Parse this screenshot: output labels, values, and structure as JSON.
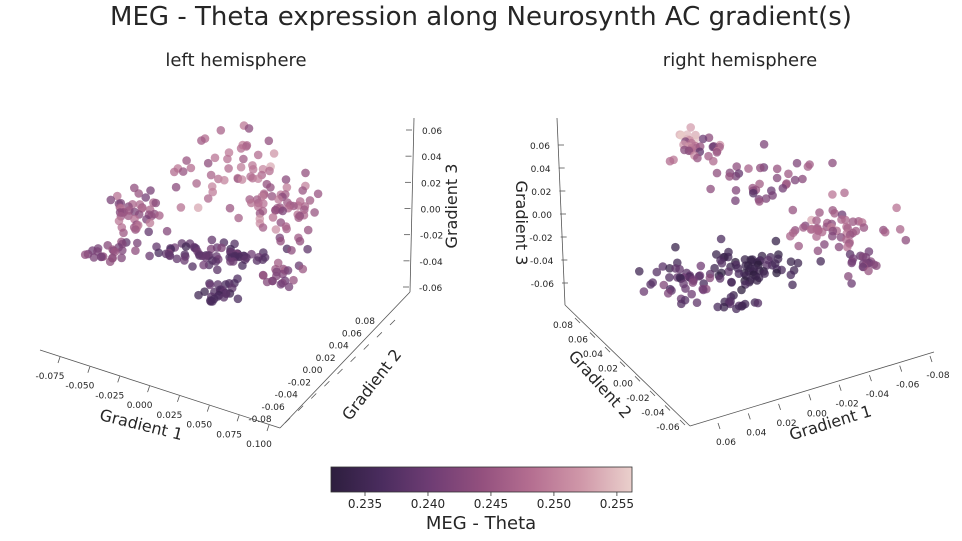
{
  "title": "MEG - Theta expression along Neurosynth AC gradient(s)",
  "colormap": {
    "stops": [
      "#2d1e3e",
      "#4a2c5e",
      "#6f3d74",
      "#93507e",
      "#b56f91",
      "#d098a9",
      "#ead0cc"
    ],
    "label": "MEG - Theta",
    "range": [
      0.2323,
      0.2562
    ],
    "ticks": [
      "0.235",
      "0.240",
      "0.245",
      "0.250",
      "0.255"
    ]
  },
  "chart_data": [
    {
      "type": "scatter",
      "subtitle": "left hemisphere",
      "xlabel": "Gradient 1",
      "ylabel": "Gradient 2",
      "zlabel": "Gradient 3",
      "x_ticks": [
        "-0.075",
        "-0.050",
        "-0.025",
        "0.000",
        "0.025",
        "0.050",
        "0.075",
        "0.100"
      ],
      "y_ticks": [
        "0.08",
        "0.06",
        "0.04",
        "0.02",
        "0.00",
        "-0.02",
        "-0.04",
        "-0.06",
        "-0.08"
      ],
      "z_ticks": [
        "0.06",
        "0.04",
        "0.02",
        "0.00",
        "-0.02",
        "-0.04",
        "-0.06"
      ],
      "xlim": [
        -0.085,
        0.105
      ],
      "ylim": [
        -0.085,
        0.085
      ],
      "zlim": [
        -0.065,
        0.065
      ],
      "color_variable": "MEG - Theta",
      "n_points_approx": 400,
      "dense_band": {
        "gradient3_range": [
          -0.06,
          -0.02
        ],
        "meg_theta_range": [
          0.232,
          0.24
        ]
      },
      "upper_region": {
        "gradient3_range": [
          0.0,
          0.065
        ],
        "meg_theta_range": [
          0.238,
          0.254
        ]
      }
    },
    {
      "type": "scatter",
      "subtitle": "right hemisphere",
      "xlabel": "Gradient 1",
      "ylabel": "Gradient 2",
      "zlabel": "Gradient 3",
      "x_ticks": [
        "-0.08",
        "-0.06",
        "-0.04",
        "-0.02",
        "0.00",
        "0.02",
        "0.04",
        "0.06"
      ],
      "y_ticks": [
        "0.08",
        "0.06",
        "0.04",
        "0.02",
        "0.00",
        "-0.02",
        "-0.04",
        "-0.06"
      ],
      "z_ticks": [
        "0.06",
        "0.04",
        "0.02",
        "0.00",
        "-0.02",
        "-0.04",
        "-0.06"
      ],
      "xlim": [
        -0.09,
        0.07
      ],
      "ylim": [
        -0.07,
        0.085
      ],
      "zlim": [
        -0.07,
        0.075
      ],
      "color_variable": "MEG - Theta",
      "n_points_approx": 400,
      "dense_band": {
        "gradient3_range": [
          -0.06,
          -0.02
        ],
        "meg_theta_range": [
          0.232,
          0.24
        ]
      },
      "upper_region": {
        "gradient3_range": [
          0.0,
          0.07
        ],
        "meg_theta_range": [
          0.238,
          0.256
        ]
      }
    }
  ]
}
